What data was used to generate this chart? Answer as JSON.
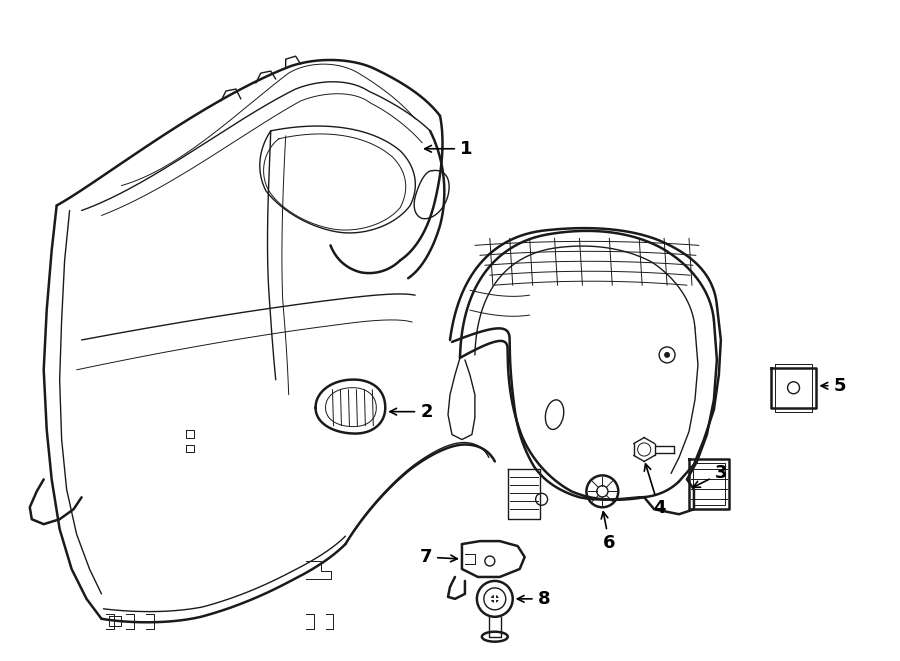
{
  "bg_color": "#ffffff",
  "line_color": "#1a1a1a",
  "fig_width": 9.0,
  "fig_height": 6.61,
  "dpi": 100,
  "lw_outer": 1.8,
  "lw_inner": 1.0,
  "lw_thin": 0.7
}
